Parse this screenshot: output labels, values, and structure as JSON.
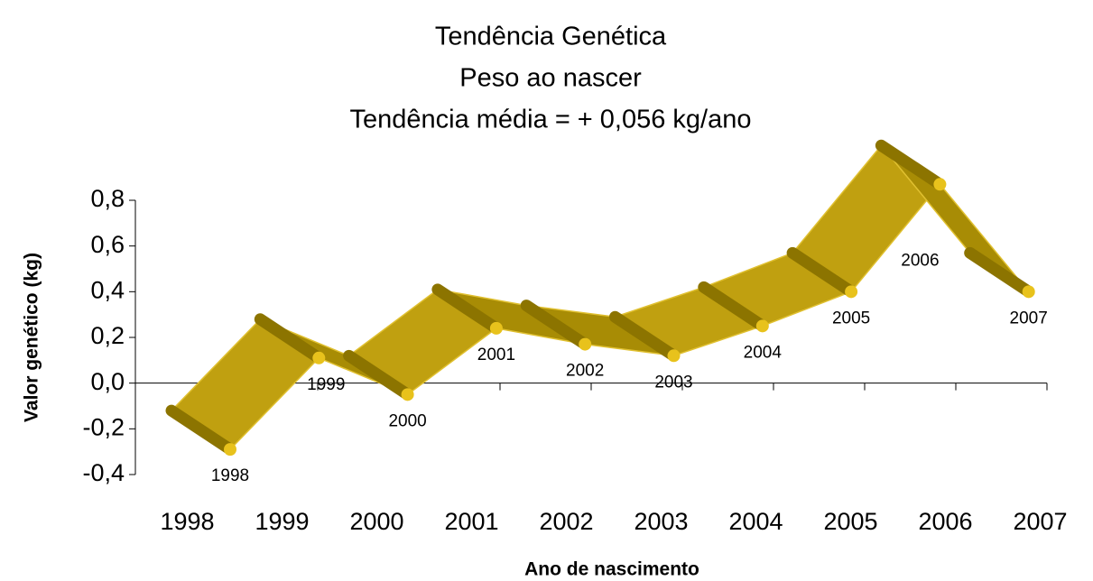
{
  "chart_data": {
    "type": "ribbon-line",
    "title": [
      "Tendência Genética",
      "Peso ao nascer",
      "Tendência média = + 0,056 kg/ano"
    ],
    "x_label": "Ano de nascimento",
    "y_label": "Valor genético (kg)",
    "categories": [
      "1998",
      "1999",
      "2000",
      "2001",
      "2002",
      "2003",
      "2004",
      "2005",
      "2006",
      "2007"
    ],
    "values": [
      -0.29,
      0.11,
      -0.05,
      0.24,
      0.17,
      0.12,
      0.25,
      0.4,
      0.87,
      0.4
    ],
    "color": "#b89a08",
    "ylim": [
      -0.4,
      0.8
    ],
    "yticks": [
      {
        "value": -0.4,
        "label": "-0,4"
      },
      {
        "value": -0.2,
        "label": "-0,2"
      },
      {
        "value": 0,
        "label": "0,0"
      },
      {
        "value": 0.2,
        "label": "0,2"
      },
      {
        "value": 0.4,
        "label": "0,4"
      },
      {
        "value": 0.6,
        "label": "0,6"
      },
      {
        "value": 0.8,
        "label": "0,8"
      }
    ]
  }
}
